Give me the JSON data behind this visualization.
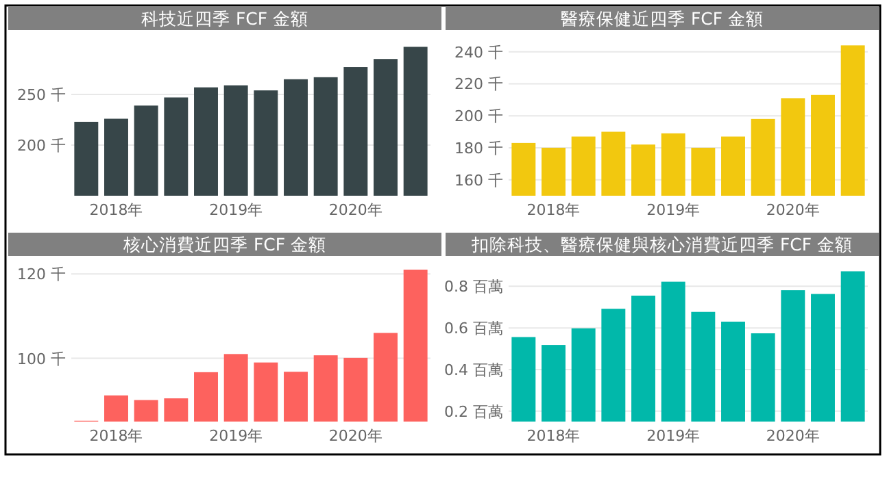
{
  "chart_data": [
    {
      "type": "bar",
      "title": "科技近四季 FCF 金額",
      "categories": [
        null,
        "2018年",
        null,
        null,
        null,
        "2019年",
        null,
        null,
        null,
        "2020年",
        null,
        null
      ],
      "values": [
        223,
        226,
        239,
        247,
        257,
        259,
        254,
        265,
        267,
        277,
        285,
        297
      ],
      "color": "#374649",
      "ylim": [
        150,
        300
      ],
      "yticks": [
        {
          "value": 200,
          "label": "200 千"
        },
        {
          "value": 250,
          "label": "250 千"
        }
      ],
      "grid": "y"
    },
    {
      "type": "bar",
      "title": "醫療保健近四季 FCF 金額",
      "categories": [
        null,
        "2018年",
        null,
        null,
        null,
        "2019年",
        null,
        null,
        null,
        "2020年",
        null,
        null
      ],
      "values": [
        183,
        180,
        187,
        190,
        182,
        189,
        180,
        187,
        198,
        211,
        213,
        244
      ],
      "color": "#f2c80f",
      "ylim": [
        150,
        245
      ],
      "yticks": [
        {
          "value": 160,
          "label": "160 千"
        },
        {
          "value": 180,
          "label": "180 千"
        },
        {
          "value": 200,
          "label": "200 千"
        },
        {
          "value": 220,
          "label": "220 千"
        },
        {
          "value": 240,
          "label": "240 千"
        }
      ],
      "grid": "y"
    },
    {
      "type": "bar",
      "title": "核心消費近四季 FCF 金額",
      "categories": [
        null,
        "2018年",
        null,
        null,
        null,
        "2019年",
        null,
        null,
        null,
        "2020年",
        null,
        null
      ],
      "values": [
        85.2,
        91.2,
        90.1,
        90.5,
        96.7,
        101.0,
        99.0,
        96.8,
        100.7,
        100.1,
        106.0,
        121.0
      ],
      "color": "#fd625e",
      "ylim": [
        85,
        121
      ],
      "yticks": [
        {
          "value": 100,
          "label": "100 千"
        },
        {
          "value": 120,
          "label": "120 千"
        }
      ],
      "grid": "y"
    },
    {
      "type": "bar",
      "title": "扣除科技、醫療保健與核心消費近四季 FCF 金額",
      "categories": [
        null,
        "2018年",
        null,
        null,
        null,
        "2019年",
        null,
        null,
        null,
        "2020年",
        null,
        null
      ],
      "values": [
        0.556,
        0.518,
        0.598,
        0.692,
        0.755,
        0.822,
        0.677,
        0.63,
        0.574,
        0.781,
        0.763,
        0.872
      ],
      "color": "#01b8aa",
      "ylim": [
        0.15,
        0.88
      ],
      "yticks": [
        {
          "value": 0.2,
          "label": "0.2 百萬"
        },
        {
          "value": 0.4,
          "label": "0.4 百萬"
        },
        {
          "value": 0.6,
          "label": "0.6 百萬"
        },
        {
          "value": 0.8,
          "label": "0.8 百萬"
        }
      ],
      "grid": "y"
    }
  ]
}
